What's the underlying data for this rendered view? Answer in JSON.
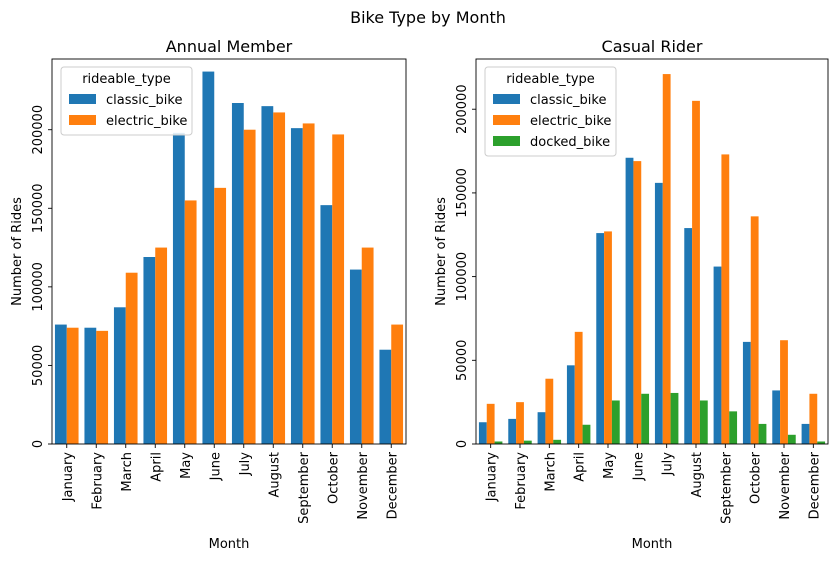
{
  "suptitle": "Bike Type by Month",
  "chart_data": [
    {
      "type": "bar",
      "title": "Annual Member",
      "xlabel": "Month",
      "ylabel": "Number of Rides",
      "ylim": [
        0,
        245000
      ],
      "yticks": [
        0,
        50000,
        100000,
        150000,
        200000
      ],
      "categories": [
        "January",
        "February",
        "March",
        "April",
        "May",
        "June",
        "July",
        "August",
        "September",
        "October",
        "November",
        "December"
      ],
      "legend": {
        "title": "rideable_type",
        "placement": "upper-left"
      },
      "series": [
        {
          "name": "classic_bike",
          "color": "#1f77b4",
          "values": [
            76000,
            74000,
            87000,
            119000,
            198000,
            237000,
            217000,
            215000,
            201000,
            152000,
            111000,
            60000
          ]
        },
        {
          "name": "electric_bike",
          "color": "#ff7f0e",
          "values": [
            74000,
            72000,
            109000,
            125000,
            155000,
            163000,
            200000,
            211000,
            204000,
            197000,
            125000,
            76000
          ]
        }
      ]
    },
    {
      "type": "bar",
      "title": "Casual Rider",
      "xlabel": "Month",
      "ylabel": "Number of Rides",
      "ylim": [
        0,
        230000
      ],
      "yticks": [
        0,
        50000,
        100000,
        150000,
        200000
      ],
      "categories": [
        "January",
        "February",
        "March",
        "April",
        "May",
        "June",
        "July",
        "August",
        "September",
        "October",
        "November",
        "December"
      ],
      "legend": {
        "title": "rideable_type",
        "placement": "upper-left"
      },
      "series": [
        {
          "name": "classic_bike",
          "color": "#1f77b4",
          "values": [
            13000,
            15000,
            19000,
            47000,
            126000,
            171000,
            156000,
            129000,
            106000,
            61000,
            32000,
            12000
          ]
        },
        {
          "name": "electric_bike",
          "color": "#ff7f0e",
          "values": [
            24000,
            25000,
            39000,
            67000,
            127000,
            169000,
            221000,
            205000,
            173000,
            136000,
            62000,
            30000
          ]
        },
        {
          "name": "docked_bike",
          "color": "#2ca02c",
          "values": [
            1500,
            2000,
            2500,
            11500,
            26000,
            30000,
            30500,
            26000,
            19500,
            12000,
            5500,
            1500
          ]
        }
      ]
    }
  ]
}
